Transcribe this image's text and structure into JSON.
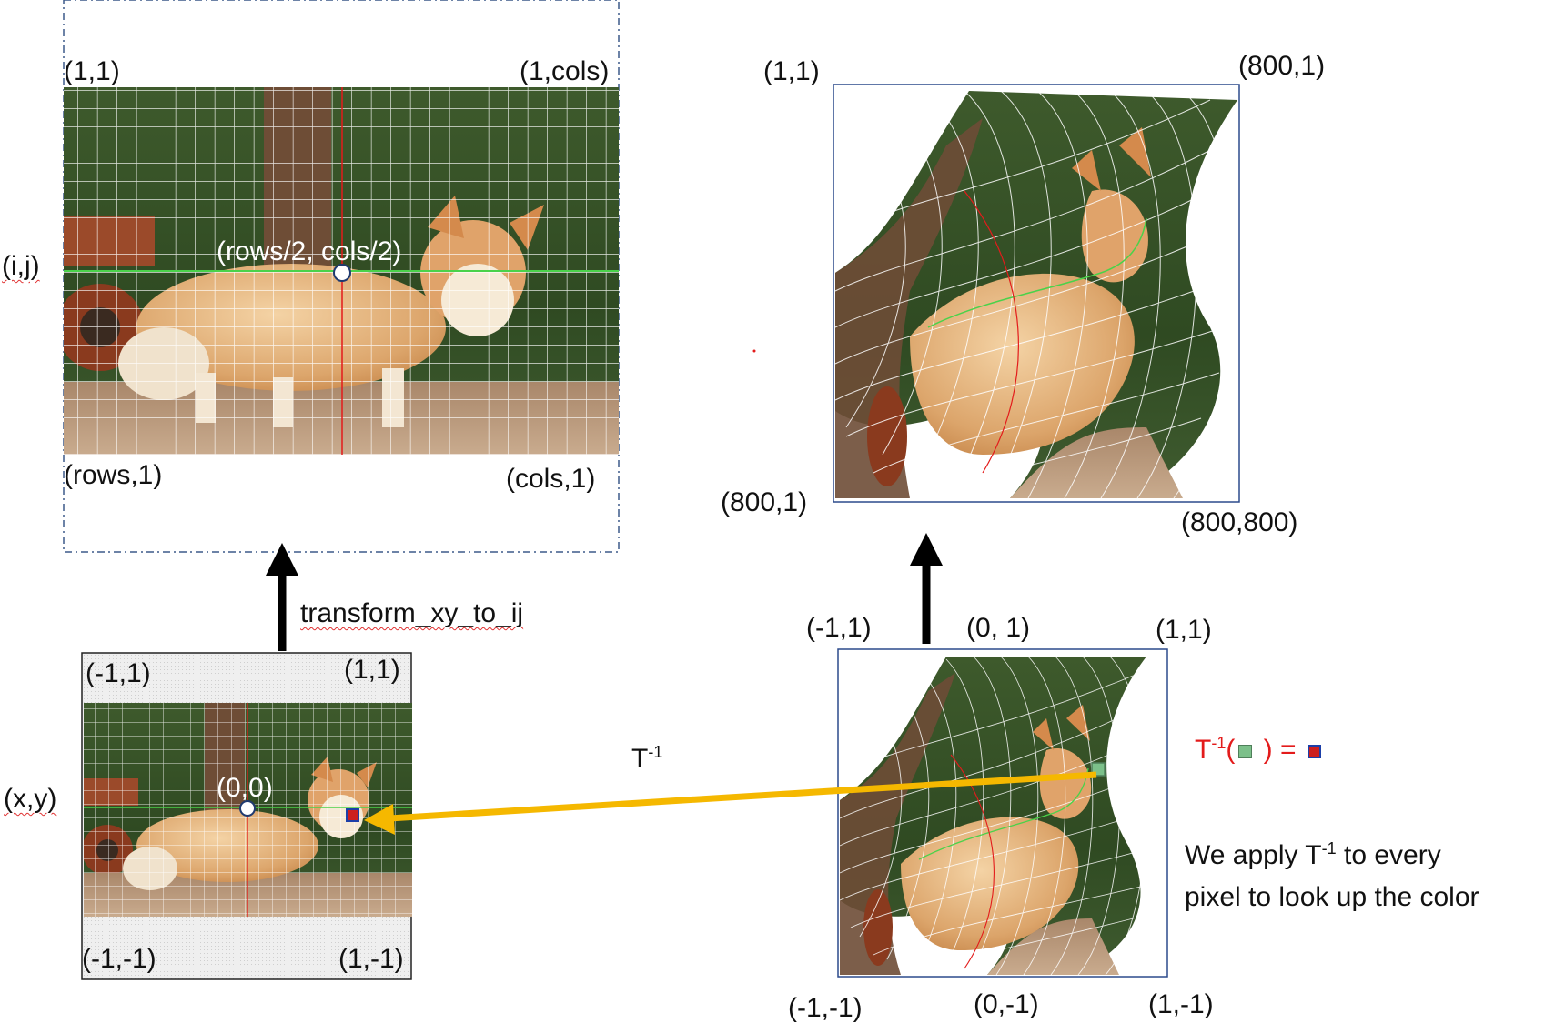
{
  "panels": {
    "ij_image": {
      "corners": {
        "top_left": "(1,1)",
        "top_right": "(1,cols)",
        "bottom_left": "(rows,1)",
        "bottom_right": "(cols,1)"
      },
      "center_label": "(rows/2, cols/2)",
      "axis_label": "(i,j)"
    },
    "warped_output": {
      "corners": {
        "top_left": "(1,1)",
        "top_right": "(800,1)",
        "bottom_left": "(800,1)",
        "bottom_right": "(800,800)"
      }
    },
    "xy_image": {
      "corners": {
        "top_left": "(-1,1)",
        "top_right": "(1,1)",
        "bottom_left": "(-1,-1)",
        "bottom_right": "(1,-1)"
      },
      "center_label": "(0,0)",
      "axis_label": "(x,y)"
    },
    "warped_xy": {
      "top_labels": {
        "left": "(-1,1)",
        "center": "(0, 1)",
        "right": "(1,1)"
      },
      "bottom_labels": {
        "left": "(-1,-1)",
        "center": "(0,-1)",
        "right": "(1,-1)"
      }
    }
  },
  "arrows": {
    "transform_label": "transform_xy_to_ij",
    "inverse_label": {
      "base": "T",
      "sup": "-1"
    }
  },
  "equation": {
    "prefix": "T",
    "sup": "-1",
    "open": "(",
    "middle": " ) = "
  },
  "note": {
    "line1_a": "We apply T",
    "line1_sup": "-1",
    "line1_b": " to every",
    "line2": "pixel to look up the color"
  },
  "colors": {
    "red_axis": "#e31b1b",
    "green_axis": "#3fbf3f",
    "arrow_yellow": "#f5b800",
    "frame_blue": "#2c4a8c"
  }
}
